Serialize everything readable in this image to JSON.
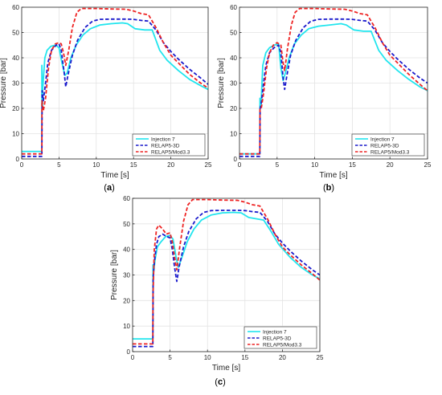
{
  "colors": {
    "injection": "#22e5ee",
    "relap5_3d": "#1a1acc",
    "relap5_mod33": "#ee2222",
    "grid": "#e3e3e3",
    "axis": "#262626"
  },
  "chart_data": [
    {
      "type": "line",
      "panel": "a",
      "caption_open": "(",
      "caption_letter": "a",
      "caption_close": ")",
      "xlabel": "Time [s]",
      "ylabel": "Pressure [bar]",
      "xlim": [
        0,
        25
      ],
      "ylim": [
        0,
        60
      ],
      "xticks": [
        0,
        5,
        10,
        15,
        20,
        25
      ],
      "yticks": [
        0,
        10,
        20,
        30,
        40,
        50,
        60
      ],
      "grid": true,
      "legend_position": "bottom-right",
      "series": [
        {
          "name": "Injection 7",
          "style": "solid",
          "x": [
            0,
            2.7,
            2.7,
            2.8,
            2.8,
            3.1,
            3.4,
            3.9,
            4.5,
            5.0,
            5.4,
            5.8,
            6.1,
            6.6,
            7.3,
            8.2,
            9.2,
            10.5,
            12,
            13.5,
            14.2,
            15.2,
            16.5,
            17.5,
            18.5,
            19.5,
            21,
            22.5,
            24,
            25
          ],
          "y": [
            3,
            3,
            37,
            20,
            27,
            40,
            43,
            44.5,
            45,
            44,
            38,
            33,
            34,
            40,
            45,
            49,
            51.5,
            53,
            53.5,
            53.8,
            53.5,
            51.5,
            51,
            51,
            43,
            39,
            35,
            31.5,
            29,
            27.5
          ]
        },
        {
          "name": "RELAP5-3D",
          "style": "dashed",
          "x": [
            0,
            2.7,
            2.75,
            2.9,
            3.2,
            3.5,
            4.0,
            4.6,
            5.0,
            5.3,
            5.7,
            5.9,
            6.2,
            6.8,
            7.5,
            8.5,
            9.5,
            10.5,
            12,
            14,
            15,
            16,
            17,
            18,
            19,
            20,
            21,
            22.5,
            24,
            25
          ],
          "y": [
            1,
            1,
            27,
            23,
            30,
            38,
            43,
            45,
            45.5,
            43,
            34,
            28.5,
            33,
            41,
            47,
            52,
            54.5,
            55.2,
            55.3,
            55.3,
            55.2,
            54.8,
            54.5,
            51,
            46,
            42.5,
            39.5,
            35.5,
            32,
            29.5
          ]
        },
        {
          "name": "RELAP5/Mod3.3",
          "style": "dashed",
          "x": [
            0,
            2.7,
            2.72,
            2.9,
            3.2,
            3.6,
            4.0,
            4.5,
            5.0,
            5.3,
            5.6,
            5.9,
            6.3,
            6.8,
            7.4,
            8.0,
            9.0,
            10,
            12,
            14,
            15,
            16,
            17,
            18,
            19,
            20,
            21,
            22.5,
            24,
            25
          ],
          "y": [
            2,
            2,
            23,
            19,
            24,
            36,
            43,
            45.5,
            46,
            45.5,
            42,
            37,
            43,
            52,
            58,
            59.5,
            59.5,
            59.5,
            59.3,
            59.2,
            58.5,
            57.5,
            57,
            52,
            46,
            41,
            38,
            33.5,
            30,
            28
          ]
        }
      ]
    },
    {
      "type": "line",
      "panel": "b",
      "caption_open": "(",
      "caption_letter": "b",
      "caption_close": ")",
      "xlabel": "Time [s]",
      "ylabel": "Pressure [bar]",
      "xlim": [
        0,
        25
      ],
      "ylim": [
        0,
        60
      ],
      "xticks": [
        0,
        5,
        10,
        15,
        20,
        25
      ],
      "yticks": [
        0,
        10,
        20,
        30,
        40,
        50,
        60
      ],
      "grid": true,
      "legend_position": "bottom-right",
      "series": [
        {
          "name": "Injection 7",
          "style": "solid",
          "x": [
            0,
            2.7,
            2.72,
            2.85,
            3.1,
            3.5,
            4.0,
            4.6,
            5.2,
            5.5,
            5.8,
            6.1,
            6.6,
            7.3,
            8.2,
            9.2,
            10.5,
            12,
            13.5,
            14.2,
            15.2,
            16.5,
            17.5,
            18.5,
            19.5,
            21,
            22.5,
            24,
            25
          ],
          "y": [
            2,
            2,
            24,
            21,
            37,
            42,
            44,
            45,
            45.5,
            36,
            31,
            34,
            40,
            45.5,
            49,
            51.5,
            52.5,
            53,
            53.5,
            53,
            51,
            50.5,
            50.5,
            43,
            39,
            35,
            31.5,
            28.5,
            27
          ]
        },
        {
          "name": "RELAP5-3D",
          "style": "dashed",
          "x": [
            0,
            2.7,
            2.75,
            2.9,
            3.2,
            3.5,
            4.0,
            4.6,
            5.2,
            5.5,
            5.8,
            6.0,
            6.3,
            6.8,
            7.5,
            8.5,
            9.5,
            10.5,
            12,
            14,
            15,
            16,
            17,
            18,
            19,
            20,
            21,
            22.5,
            24,
            25
          ],
          "y": [
            1,
            1,
            20,
            22,
            30,
            37,
            42,
            44,
            45,
            42,
            32,
            27.5,
            33,
            41,
            47,
            52,
            54.5,
            55.2,
            55.3,
            55.3,
            55.2,
            54.8,
            54.5,
            51,
            46,
            42.5,
            39.5,
            35.5,
            32,
            30
          ]
        },
        {
          "name": "RELAP5/Mod3.3",
          "style": "dashed",
          "x": [
            0,
            2.7,
            2.72,
            2.9,
            3.2,
            3.6,
            4.0,
            4.5,
            5.0,
            5.5,
            5.8,
            6.0,
            6.4,
            6.9,
            7.4,
            8.0,
            9.0,
            10,
            12,
            14,
            15,
            16,
            17,
            18,
            19,
            20,
            21,
            22.5,
            24,
            25
          ],
          "y": [
            2,
            2,
            20,
            20,
            26,
            36,
            42,
            45,
            46,
            45,
            38,
            35,
            44,
            53,
            58,
            59.5,
            59.5,
            59.5,
            59.3,
            59.2,
            58.5,
            57.5,
            57,
            52,
            46,
            41,
            38,
            33.5,
            29.5,
            27
          ]
        }
      ]
    },
    {
      "type": "line",
      "panel": "c",
      "caption_open": "(",
      "caption_letter": "c",
      "caption_close": ")",
      "xlabel": "Time [s]",
      "ylabel": "Pressure [bar]",
      "xlim": [
        0,
        25
      ],
      "ylim": [
        0,
        60
      ],
      "xticks": [
        0,
        5,
        10,
        15,
        20,
        25
      ],
      "yticks": [
        0,
        10,
        20,
        30,
        40,
        50,
        60
      ],
      "grid": true,
      "legend_position": "bottom-right",
      "series": [
        {
          "name": "Injection 7",
          "style": "solid",
          "x": [
            0,
            2.7,
            2.72,
            2.8,
            3.0,
            3.3,
            3.8,
            4.4,
            5.0,
            5.4,
            5.8,
            6.1,
            6.6,
            7.3,
            8.2,
            9.2,
            10.5,
            12,
            13.5,
            14.5,
            15.5,
            16.5,
            17.5,
            18.5,
            19.5,
            21,
            22.5,
            24,
            25
          ],
          "y": [
            5,
            5,
            34,
            31,
            36,
            41,
            43,
            45,
            45.5,
            44,
            37,
            33,
            37,
            43,
            48,
            51.5,
            53.5,
            54.3,
            54.5,
            54.3,
            52.5,
            52,
            51.5,
            47,
            42,
            37,
            33,
            30,
            28.5
          ]
        },
        {
          "name": "RELAP5-3D",
          "style": "dashed",
          "x": [
            0,
            2.7,
            2.75,
            2.9,
            3.2,
            3.5,
            4.0,
            4.6,
            5.0,
            5.3,
            5.6,
            5.9,
            6.2,
            6.8,
            7.5,
            8.5,
            9.5,
            10.5,
            12,
            14,
            15,
            16,
            17,
            18,
            19,
            20,
            21,
            22.5,
            24,
            25
          ],
          "y": [
            2,
            2,
            29,
            35,
            42,
            45,
            46,
            45,
            44.5,
            40,
            33,
            27.5,
            33,
            41,
            47,
            52,
            54.5,
            55.2,
            55.3,
            55.3,
            55.2,
            54.8,
            54.5,
            51,
            46,
            42.5,
            39.5,
            35.5,
            32,
            30
          ]
        },
        {
          "name": "RELAP5/Mod3.3",
          "style": "dashed",
          "x": [
            0,
            2.7,
            2.72,
            2.9,
            3.2,
            3.5,
            4.0,
            4.5,
            5.0,
            5.3,
            5.6,
            5.9,
            6.3,
            6.8,
            7.4,
            8.0,
            9.0,
            10,
            12,
            14,
            15,
            16,
            17,
            18,
            19,
            20,
            21,
            22.5,
            24,
            25
          ],
          "y": [
            3,
            3,
            22,
            40,
            48,
            49.5,
            48,
            46,
            46.5,
            43,
            37,
            32,
            41,
            51,
            57.5,
            59.5,
            59.5,
            59.5,
            59.3,
            59.2,
            58.5,
            57.5,
            57,
            52,
            46,
            41,
            38,
            34,
            30.5,
            28
          ]
        }
      ]
    }
  ]
}
